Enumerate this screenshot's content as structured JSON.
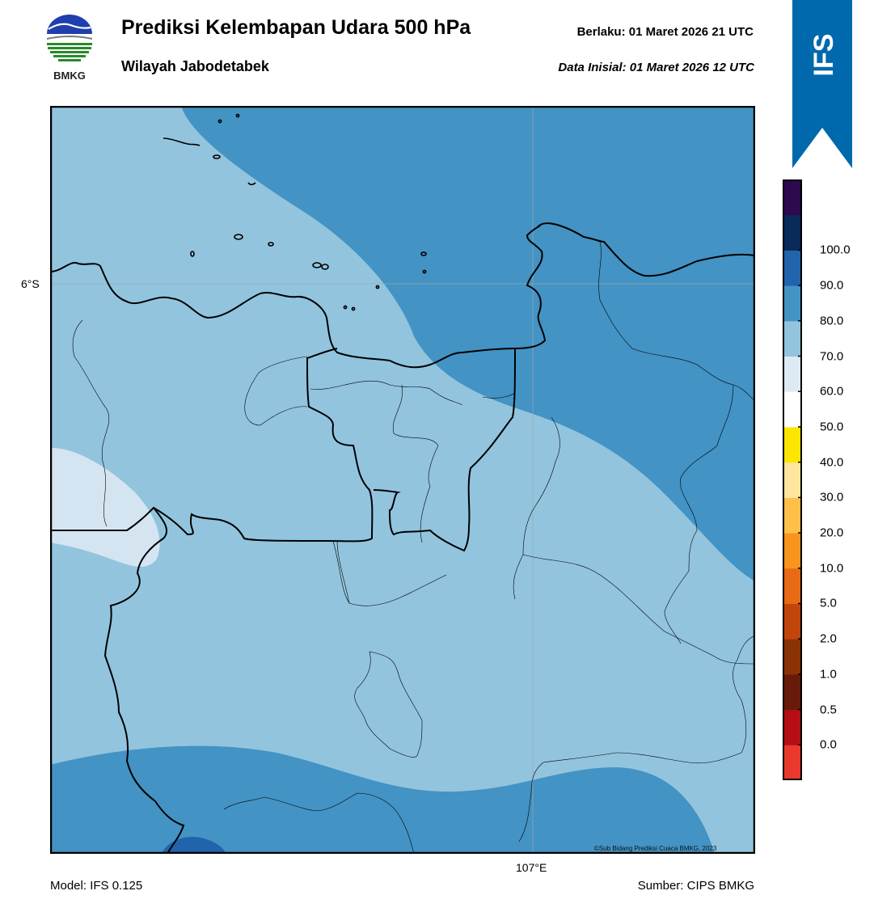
{
  "header": {
    "title": "Prediksi Kelembapan Udara 500 hPa",
    "subtitle": "Wilayah Jabodetabek",
    "valid_text": "Berlaku:  01 Maret 2026 21 UTC",
    "initial_text": "Data Inisial:  01 Maret 2026 12 UTC"
  },
  "logo": {
    "name": "bmkg-logo",
    "text": "BMKG"
  },
  "ribbon": {
    "text": "IFS",
    "color": "#0069ad"
  },
  "map": {
    "lat_label": "6°S",
    "lon_label": "107°E",
    "credit": "©Sub Bidang Prediksi Cuaca BMKG, 2023",
    "fill_colors": {
      "50-60": "#d4e5f1",
      "60-70": "#92c4de",
      "70-80": "#4393c4",
      "80-90": "#2264ab"
    }
  },
  "footer": {
    "model": "Model: IFS 0.125",
    "source": "Sumber: CIPS BMKG"
  },
  "colorbar": {
    "labels": [
      "0.0",
      "0.5",
      "1.0",
      "2.0",
      "5.0",
      "10.0",
      "20.0",
      "30.0",
      "40.0",
      "50.0",
      "60.0",
      "70.0",
      "80.0",
      "90.0",
      "100.0"
    ],
    "colors": [
      "#e8392c",
      "#b50f15",
      "#681b0a",
      "#8a3206",
      "#c2450b",
      "#e86a15",
      "#f7951e",
      "#ffc04a",
      "#ffe59e",
      "#fce601",
      "#ffffff",
      "#ddeaf4",
      "#92c4de",
      "#4393c4",
      "#2264ab",
      "#082b5a",
      "#2d0a4d"
    ]
  }
}
